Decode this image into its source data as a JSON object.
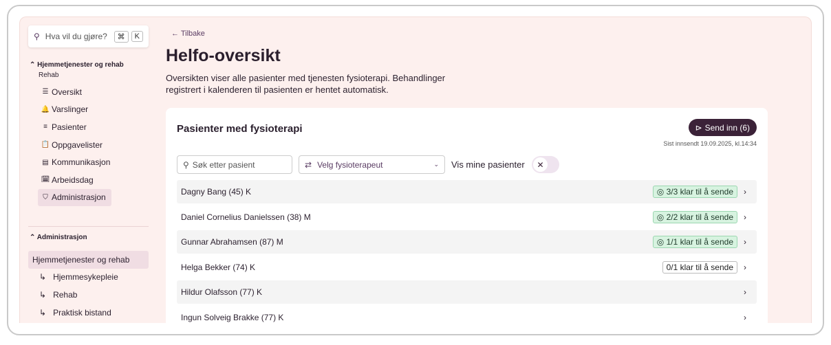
{
  "sidebar": {
    "search_placeholder": "Hva vil du gjøre?",
    "kbd1": "⌘",
    "kbd2": "K",
    "section": "Hjemmetjenester og rehab",
    "subsection": "Rehab",
    "items": [
      {
        "icon": "☰",
        "label": "Oversikt"
      },
      {
        "icon": "🔔",
        "label": "Varslinger"
      },
      {
        "icon": "≡",
        "label": "Pasienter"
      },
      {
        "icon": "📋",
        "label": "Oppgavelister"
      },
      {
        "icon": "▤",
        "label": "Kommunikasjon"
      },
      {
        "icon": "🗓",
        "label": "Arbeidsdag"
      },
      {
        "icon": "⛉",
        "label": "Administrasjon"
      }
    ],
    "admin_section": "Administrasjon",
    "admin_items": [
      {
        "label": "Hjemmetjenester og rehab"
      },
      {
        "label": "Hjemmesykepleie"
      },
      {
        "label": "Rehab"
      },
      {
        "label": "Praktisk bistand"
      }
    ]
  },
  "main": {
    "back": "Tilbake",
    "title": "Helfo-oversikt",
    "description": "Oversikten viser alle pasienter med tjenesten fysioterapi. Behandlinger registrert i kalenderen til pasienten er hentet automatisk.",
    "card": {
      "title": "Pasienter med fysioterapi",
      "send_label": "Send inn (6)",
      "last_sent": "Sist innsendt 19.09.2025, kl.14:34",
      "search_placeholder": "Søk etter pasient",
      "select_label": "Velg fysioterapeut",
      "toggle_label": "Vis mine pasienter",
      "rows": [
        {
          "name": "Dagny Bang (45) K",
          "status": "3/3 klar til å sende"
        },
        {
          "name": "Daniel Cornelius Danielssen (38) M",
          "status": "2/2 klar til å sende"
        },
        {
          "name": "Gunnar Abrahamsen (87) M",
          "status": "1/1 klar til å sende"
        },
        {
          "name": "Helga Bekker (74) K",
          "status": "0/1 klar til å sende"
        },
        {
          "name": "Hildur Olafsson (77) K",
          "status": ""
        },
        {
          "name": "Ingun Solveig Brakke (77) K",
          "status": ""
        }
      ]
    }
  }
}
